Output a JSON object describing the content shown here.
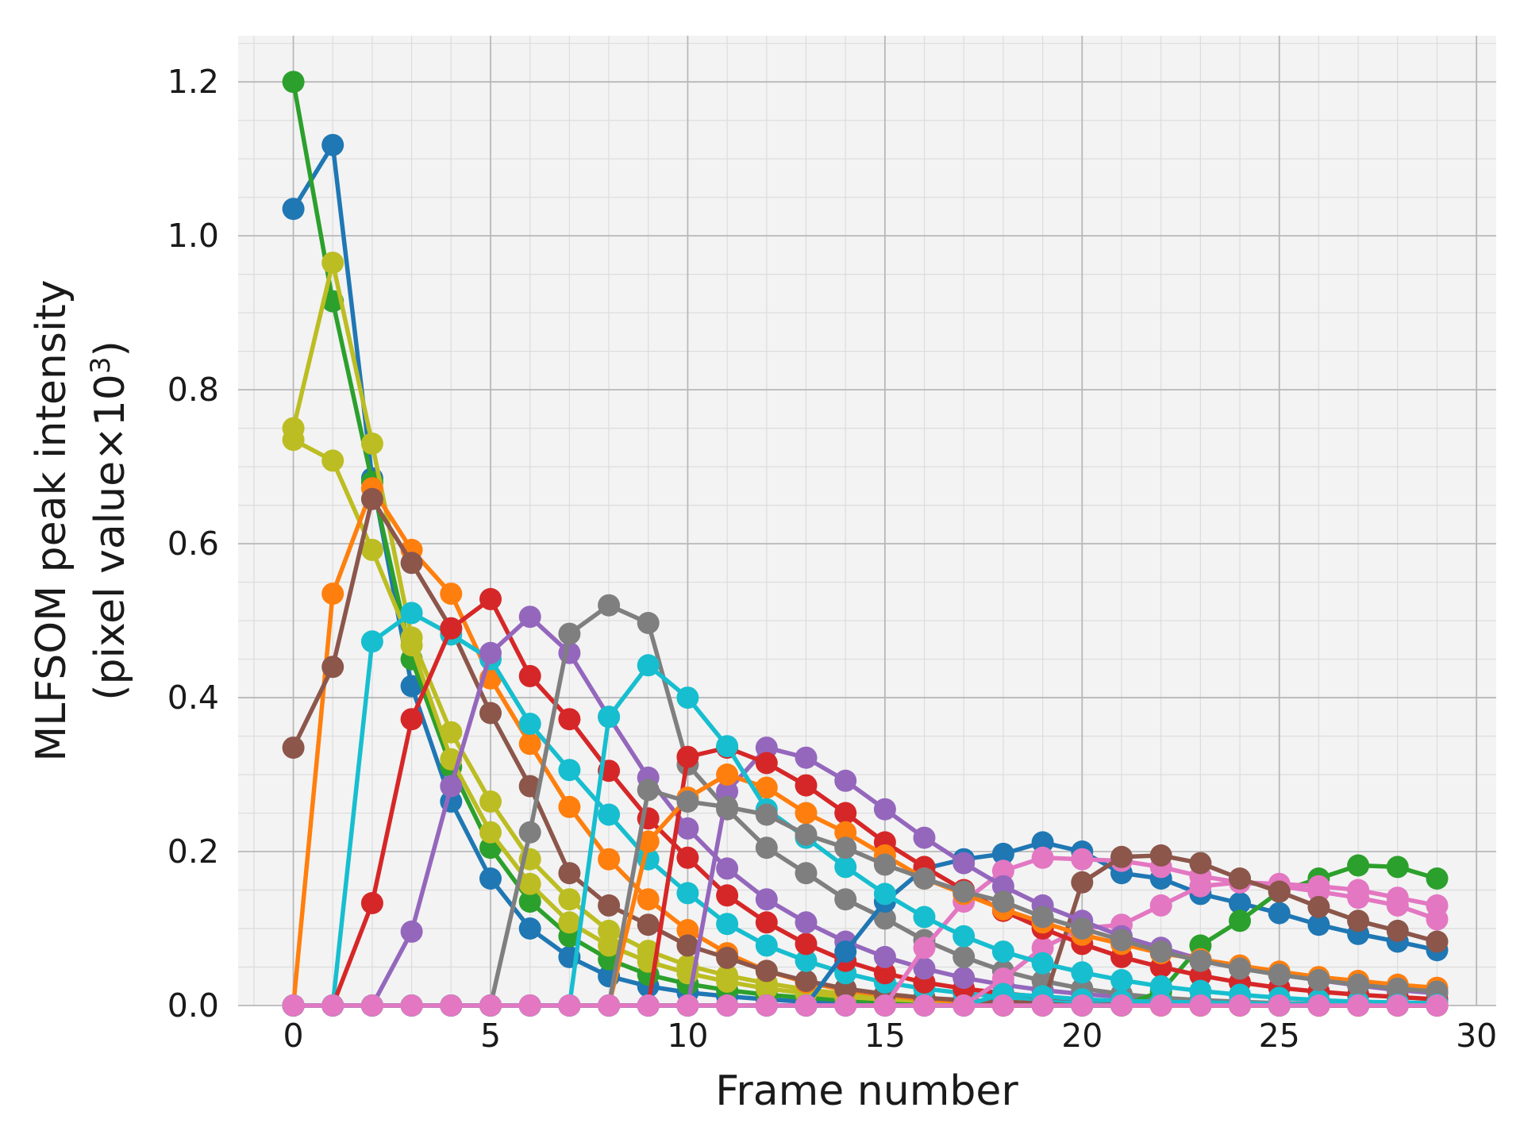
{
  "chart_data": {
    "type": "line",
    "title": "",
    "xlabel": "Frame number",
    "ylabel_line1": "MLFSOM peak intensity",
    "ylabel_line2": "(pixel value×10",
    "ylabel_sup": "3",
    "ylabel_close": ")",
    "xlim": [
      -1.4,
      30.5
    ],
    "ylim": [
      0.0,
      1.26
    ],
    "xticks": [
      0,
      5,
      10,
      15,
      20,
      25,
      30
    ],
    "xtick_labels": [
      "0",
      "5",
      "10",
      "15",
      "20",
      "25",
      "30"
    ],
    "yticks": [
      0.0,
      0.2,
      0.4,
      0.6,
      0.8,
      1.0,
      1.2
    ],
    "ytick_labels": [
      "0.0",
      "0.2",
      "0.4",
      "0.6",
      "0.8",
      "1.0",
      "1.2"
    ],
    "grid": true,
    "minor_grid": true,
    "legend": "none",
    "x": [
      0,
      1,
      2,
      3,
      4,
      5,
      6,
      7,
      8,
      9,
      10,
      11,
      12,
      13,
      14,
      15,
      16,
      17,
      18,
      19,
      20,
      21,
      22,
      23,
      24,
      25,
      26,
      27,
      28,
      29
    ],
    "series": [
      {
        "color": "#1f77b4",
        "values": [
          1.035,
          1.118,
          0.685,
          0.415,
          0.265,
          0.165,
          0.1,
          0.063,
          0.038,
          0.025,
          0.017,
          0.012,
          0.008,
          0.005,
          0.003,
          0.002,
          0.001,
          0.001,
          0.0,
          0.0,
          0.0,
          0.0,
          0.0,
          0.0,
          0.0,
          0.0,
          0.0,
          0.0,
          0.0,
          0.0
        ]
      },
      {
        "color": "#2ca02c",
        "values": [
          1.2,
          0.915,
          0.68,
          0.45,
          0.31,
          0.205,
          0.135,
          0.09,
          0.06,
          0.04,
          0.028,
          0.02,
          0.014,
          0.01,
          0.007,
          0.005,
          0.003,
          0.002,
          0.001,
          0.001,
          0.0,
          0.0,
          0.0,
          0.0,
          0.0,
          0.0,
          0.0,
          0.0,
          0.0,
          0.0
        ]
      },
      {
        "color": "#bcbd22",
        "values": [
          0.735,
          0.708,
          0.592,
          0.468,
          0.32,
          0.225,
          0.158,
          0.108,
          0.078,
          0.057,
          0.042,
          0.031,
          0.022,
          0.016,
          0.011,
          0.008,
          0.006,
          0.004,
          0.003,
          0.002,
          0.001,
          0.001,
          0.0,
          0.0,
          0.0,
          0.0,
          0.0,
          0.0,
          0.0,
          0.0
        ]
      },
      {
        "color": "#bcbd22",
        "values": [
          0.75,
          0.965,
          0.73,
          0.478,
          0.355,
          0.265,
          0.19,
          0.138,
          0.097,
          0.071,
          0.052,
          0.039,
          0.029,
          0.021,
          0.015,
          0.011,
          0.008,
          0.006,
          0.004,
          0.003,
          0.002,
          0.001,
          0.001,
          0.0,
          0.0,
          0.0,
          0.0,
          0.0,
          0.0,
          0.0
        ]
      },
      {
        "color": "#ff7f0e",
        "values": [
          0.0,
          0.535,
          0.672,
          0.592,
          0.535,
          0.425,
          0.34,
          0.258,
          0.19,
          0.138,
          0.098,
          0.068,
          0.045,
          0.03,
          0.02,
          0.013,
          0.008,
          0.005,
          0.003,
          0.002,
          0.001,
          0.0,
          0.0,
          0.0,
          0.0,
          0.0,
          0.0,
          0.0,
          0.0,
          0.0
        ]
      },
      {
        "color": "#8c564b",
        "values": [
          0.335,
          0.44,
          0.658,
          0.575,
          0.49,
          0.38,
          0.285,
          0.172,
          0.13,
          0.105,
          0.078,
          0.062,
          0.045,
          0.032,
          0.022,
          0.015,
          0.01,
          0.007,
          0.005,
          0.003,
          0.002,
          0.001,
          0.001,
          0.0,
          0.0,
          0.0,
          0.0,
          0.0,
          0.0,
          0.0
        ]
      },
      {
        "color": "#17becf",
        "values": [
          0.0,
          0.0,
          0.473,
          0.51,
          0.482,
          0.45,
          0.366,
          0.306,
          0.248,
          0.19,
          0.146,
          0.106,
          0.078,
          0.058,
          0.042,
          0.03,
          0.022,
          0.016,
          0.011,
          0.008,
          0.005,
          0.003,
          0.002,
          0.001,
          0.001,
          0.0,
          0.0,
          0.0,
          0.0,
          0.0
        ]
      },
      {
        "color": "#d62728",
        "values": [
          0.0,
          0.0,
          0.133,
          0.372,
          0.49,
          0.528,
          0.428,
          0.372,
          0.305,
          0.243,
          0.192,
          0.143,
          0.108,
          0.08,
          0.058,
          0.042,
          0.03,
          0.022,
          0.016,
          0.011,
          0.008,
          0.005,
          0.003,
          0.002,
          0.001,
          0.001,
          0.0,
          0.0,
          0.0,
          0.0
        ]
      },
      {
        "color": "#9467bd",
        "values": [
          0.0,
          0.0,
          0.0,
          0.096,
          0.285,
          0.458,
          0.505,
          0.458,
          0.375,
          0.296,
          0.23,
          0.178,
          0.138,
          0.108,
          0.083,
          0.063,
          0.048,
          0.036,
          0.027,
          0.02,
          0.015,
          0.011,
          0.008,
          0.006,
          0.004,
          0.003,
          0.002,
          0.002,
          0.001,
          0.001
        ]
      },
      {
        "color": "#7f7f7f",
        "values": [
          0.0,
          0.0,
          0.0,
          0.0,
          0.0,
          0.0,
          0.225,
          0.483,
          0.52,
          0.497,
          0.313,
          0.255,
          0.205,
          0.172,
          0.138,
          0.113,
          0.085,
          0.063,
          0.045,
          0.032,
          0.022,
          0.015,
          0.01,
          0.007,
          0.005,
          0.003,
          0.002,
          0.001,
          0.001,
          0.0
        ]
      },
      {
        "color": "#1f77b4",
        "values": [
          0.0,
          0.0,
          0.0,
          0.0,
          0.0,
          0.0,
          0.0,
          0.0,
          0.0,
          0.0,
          0.0,
          0.0,
          0.0,
          0.0,
          0.07,
          0.135,
          0.178,
          0.19,
          0.197,
          0.212,
          0.2,
          0.172,
          0.165,
          0.145,
          0.133,
          0.12,
          0.105,
          0.093,
          0.083,
          0.072
        ]
      },
      {
        "color": "#2ca02c",
        "values": [
          0.0,
          0.0,
          0.0,
          0.0,
          0.0,
          0.0,
          0.0,
          0.0,
          0.0,
          0.0,
          0.0,
          0.0,
          0.0,
          0.0,
          0.0,
          0.0,
          0.0,
          0.0,
          0.0,
          0.0,
          0.0,
          0.0,
          0.018,
          0.078,
          0.11,
          0.148,
          0.165,
          0.182,
          0.18,
          0.165
        ]
      },
      {
        "color": "#e377c2",
        "values": [
          0.0,
          0.0,
          0.0,
          0.0,
          0.0,
          0.0,
          0.0,
          0.0,
          0.0,
          0.0,
          0.0,
          0.0,
          0.0,
          0.0,
          0.0,
          0.0,
          0.0,
          0.0,
          0.035,
          0.075,
          0.1,
          0.105,
          0.13,
          0.155,
          0.16,
          0.158,
          0.155,
          0.15,
          0.14,
          0.13
        ]
      },
      {
        "color": "#e377c2",
        "values": [
          0.0,
          0.0,
          0.0,
          0.0,
          0.0,
          0.0,
          0.0,
          0.0,
          0.0,
          0.0,
          0.0,
          0.0,
          0.0,
          0.0,
          0.0,
          0.0,
          0.075,
          0.135,
          0.175,
          0.192,
          0.19,
          0.188,
          0.18,
          0.168,
          0.16,
          0.155,
          0.148,
          0.14,
          0.13,
          0.112
        ]
      },
      {
        "color": "#8c564b",
        "values": [
          0.0,
          0.0,
          0.0,
          0.0,
          0.0,
          0.0,
          0.0,
          0.0,
          0.0,
          0.0,
          0.0,
          0.0,
          0.0,
          0.0,
          0.0,
          0.0,
          0.0,
          0.0,
          0.0,
          0.0,
          0.16,
          0.193,
          0.195,
          0.185,
          0.165,
          0.148,
          0.128,
          0.11,
          0.097,
          0.083
        ]
      },
      {
        "color": "#9467bd",
        "values": [
          0.0,
          0.0,
          0.0,
          0.0,
          0.0,
          0.0,
          0.0,
          0.0,
          0.0,
          0.0,
          0.0,
          0.278,
          0.335,
          0.322,
          0.292,
          0.255,
          0.218,
          0.185,
          0.155,
          0.13,
          0.11,
          0.09,
          0.075,
          0.06,
          0.05,
          0.04,
          0.033,
          0.026,
          0.02,
          0.016
        ]
      },
      {
        "color": "#d62728",
        "values": [
          0.0,
          0.0,
          0.0,
          0.0,
          0.0,
          0.0,
          0.0,
          0.0,
          0.0,
          0.0,
          0.323,
          0.335,
          0.315,
          0.286,
          0.25,
          0.212,
          0.18,
          0.15,
          0.123,
          0.1,
          0.08,
          0.063,
          0.05,
          0.039,
          0.03,
          0.023,
          0.018,
          0.014,
          0.011,
          0.008
        ]
      },
      {
        "color": "#ff7f0e",
        "values": [
          0.0,
          0.0,
          0.0,
          0.0,
          0.0,
          0.0,
          0.0,
          0.0,
          0.0,
          0.213,
          0.27,
          0.3,
          0.283,
          0.25,
          0.225,
          0.195,
          0.165,
          0.145,
          0.125,
          0.108,
          0.092,
          0.08,
          0.068,
          0.06,
          0.052,
          0.044,
          0.037,
          0.032,
          0.027,
          0.023
        ]
      },
      {
        "color": "#17becf",
        "values": [
          0.0,
          0.0,
          0.0,
          0.0,
          0.0,
          0.0,
          0.0,
          0.0,
          0.375,
          0.442,
          0.4,
          0.337,
          0.255,
          0.218,
          0.18,
          0.145,
          0.115,
          0.09,
          0.07,
          0.055,
          0.043,
          0.033,
          0.025,
          0.019,
          0.014,
          0.01,
          0.007,
          0.005,
          0.004,
          0.003
        ]
      },
      {
        "color": "#7f7f7f",
        "values": [
          0.0,
          0.0,
          0.0,
          0.0,
          0.0,
          0.0,
          0.0,
          0.0,
          0.0,
          0.28,
          0.265,
          0.258,
          0.248,
          0.222,
          0.205,
          0.183,
          0.165,
          0.148,
          0.135,
          0.115,
          0.1,
          0.085,
          0.07,
          0.058,
          0.048,
          0.04,
          0.033,
          0.027,
          0.022,
          0.018
        ]
      },
      {
        "color": "#17becf",
        "values": [
          0.0,
          0.0,
          0.0,
          0.0,
          0.0,
          0.0,
          0.0,
          0.0,
          0.0,
          0.0,
          0.0,
          0.0,
          0.0,
          0.0,
          0.0,
          0.0,
          0.0,
          0.0,
          0.015,
          0.012,
          0.008,
          0.006,
          0.005,
          0.004,
          0.003,
          0.002,
          0.002,
          0.001,
          0.001,
          0.001
        ]
      },
      {
        "color": "#e377c2",
        "values": [
          0.0,
          0.0,
          0.0,
          0.0,
          0.0,
          0.0,
          0.0,
          0.0,
          0.0,
          0.0,
          0.0,
          0.0,
          0.0,
          0.0,
          0.0,
          0.0,
          0.0,
          0.0,
          0.0,
          0.0,
          0.0,
          0.0,
          0.0,
          0.0,
          0.0,
          0.0,
          0.0,
          0.0,
          0.0,
          0.0
        ]
      }
    ]
  }
}
